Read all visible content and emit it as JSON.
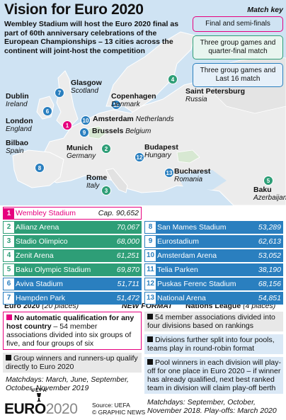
{
  "title": "Vision for Euro 2020",
  "intro": "Wembley Stadium will host the Euro 2020 final as part of 60th anniversary celebrations of the European Championships – 13 cities across the continent will joint-host the competition",
  "match_key": {
    "title": "Match key",
    "final": "Final and semi-finals",
    "qf": "Three group games and quarter-final match",
    "last16": "Three group games and Last 16 match"
  },
  "cities": [
    {
      "n": "1",
      "name": "London",
      "country": "England"
    },
    {
      "n": "2",
      "name": "Munich",
      "country": "Germany"
    },
    {
      "n": "3",
      "name": "Rome",
      "country": "Italy"
    },
    {
      "n": "4",
      "name": "Saint Petersburg",
      "country": "Russia"
    },
    {
      "n": "5",
      "name": "Baku",
      "country": "Azerbaijan"
    },
    {
      "n": "6",
      "name": "Dublin",
      "country": "Ireland"
    },
    {
      "n": "7",
      "name": "Glasgow",
      "country": "Scotland"
    },
    {
      "n": "8",
      "name": "Bilbao",
      "country": "Spain"
    },
    {
      "n": "9",
      "name": "Brussels",
      "country": "Belgium"
    },
    {
      "n": "10",
      "name": "Amsterdam",
      "country": "Netherlands"
    },
    {
      "n": "11",
      "name": "Copenhagen",
      "country": "Denmark"
    },
    {
      "n": "12",
      "name": "Budapest",
      "country": "Hungary"
    },
    {
      "n": "13",
      "name": "Bucharest",
      "country": "Romania"
    }
  ],
  "stadiums": [
    {
      "n": "1",
      "name": "Wembley Stadium",
      "cap": "Cap. 90,652"
    },
    {
      "n": "2",
      "name": "Allianz Arena",
      "cap": "70,067"
    },
    {
      "n": "3",
      "name": "Stadio Olimpico",
      "cap": "68,000"
    },
    {
      "n": "4",
      "name": "Zenit Arena",
      "cap": "61,251"
    },
    {
      "n": "5",
      "name": "Baku Olympic Stadium",
      "cap": "69,870"
    },
    {
      "n": "6",
      "name": "Aviva Stadium",
      "cap": "51,711"
    },
    {
      "n": "7",
      "name": "Hampden Park",
      "cap": "51,472"
    },
    {
      "n": "8",
      "name": "San Mames Stadium",
      "cap": "53,289"
    },
    {
      "n": "9",
      "name": "Eurostadium",
      "cap": "62,613"
    },
    {
      "n": "10",
      "name": "Amsterdam Arena",
      "cap": "53,052"
    },
    {
      "n": "11",
      "name": "Telia Parken",
      "cap": "38,190"
    },
    {
      "n": "12",
      "name": "Puskas Ferenc Stadium",
      "cap": "68,156"
    },
    {
      "n": "13",
      "name": "National Arena",
      "cap": "54,851"
    }
  ],
  "euro_section": {
    "heading": "Euro 2020",
    "places": "(20 places)",
    "new_format": "NEW FORMAT",
    "box1_bold": "No automatic qualification for any host country",
    "box1_rest": " – 54 member associations divided into six groups of five, and four groups of six",
    "box2": "Group winners and runners-up qualify directly to Euro 2020",
    "matchdays": "Matchdays: March, June, September, October, November 2019"
  },
  "nations_league": {
    "heading": "Nations League",
    "places": "(4 places)",
    "box1": "54 member associations divided into four divisions based on rankings",
    "box2": "Divisions further split into four pools, teams play in round-robin format",
    "box3": "Pool winners in each division will play-off for one place in Euro 2020 – if winner has already qualified, next best ranked team in division will claim play-off berth",
    "matchdays": "Matchdays: September, October, November 2018. Play-offs: March 2020"
  },
  "logo": {
    "uefa": "UEFA",
    "euro": "EURO",
    "year": "2020"
  },
  "credit": {
    "source": "Source: UEFA",
    "agency": "© GRAPHIC NEWS"
  },
  "colors": {
    "blue": "#2a7fbf",
    "green": "#2e9e77",
    "pink": "#e6007e"
  }
}
